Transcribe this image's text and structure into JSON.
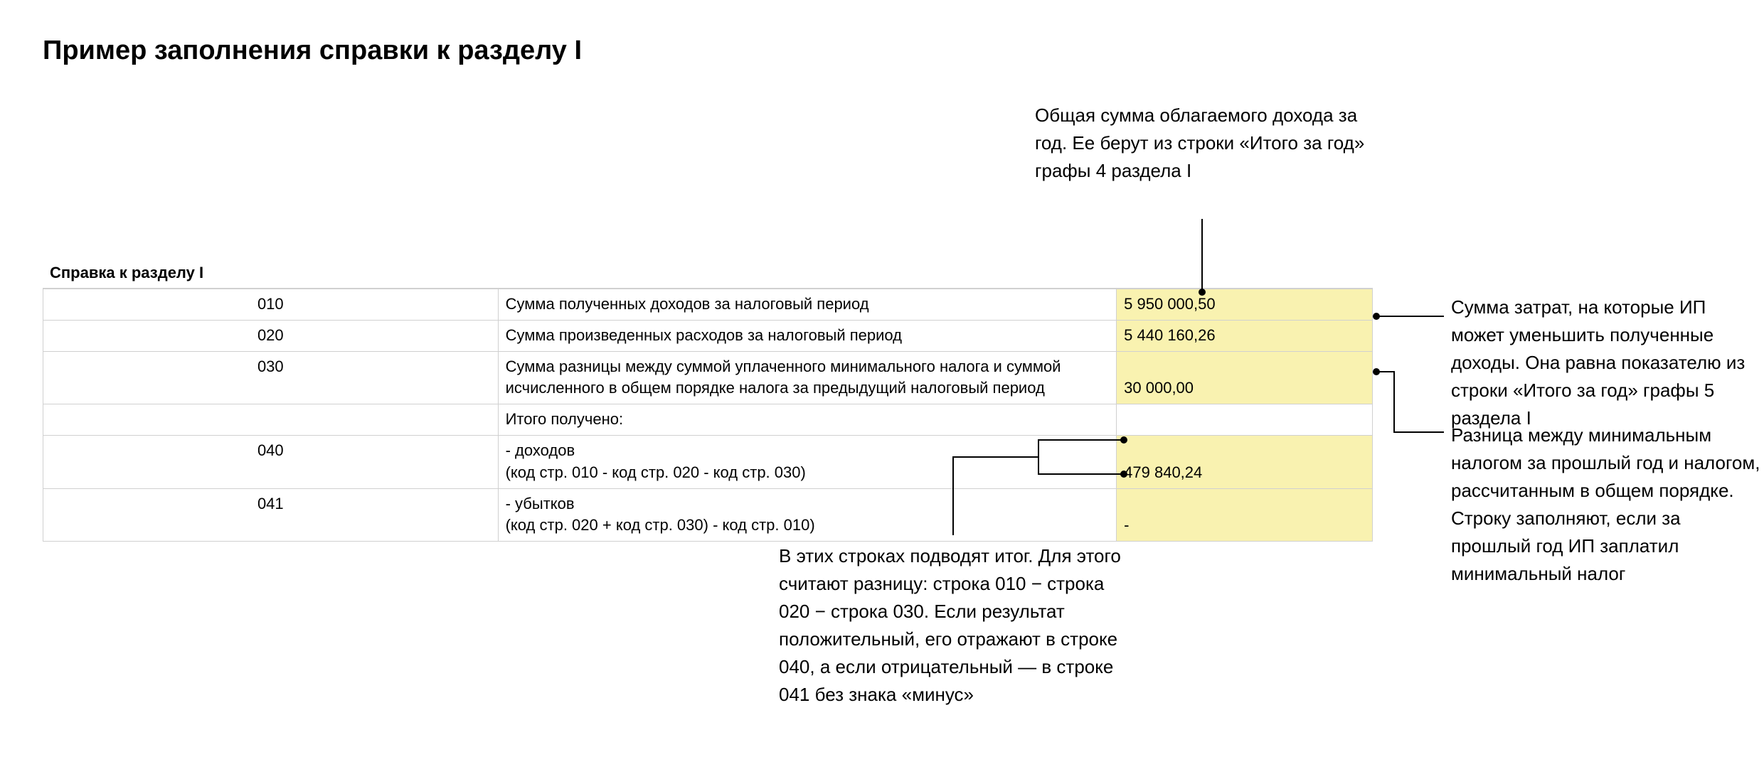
{
  "title": "Пример заполнения справки к разделу I",
  "table": {
    "header": "Справка к разделу I",
    "highlight_color": "#f9f2b0",
    "border_color": "#d0d0d0",
    "rows": [
      {
        "code": "010",
        "desc": "Сумма полученных доходов за налоговый период",
        "value": "5 950 000,50",
        "highlight": true
      },
      {
        "code": "020",
        "desc": "Сумма произведенных расходов за налоговый период",
        "value": "5 440 160,26",
        "highlight": true
      },
      {
        "code": "030",
        "desc": "Сумма разницы между суммой уплаченного минимального налога и суммой исчисленного в общем порядке налога за предыдущий налоговый период",
        "value": "30 000,00",
        "highlight": true
      },
      {
        "code": "",
        "desc": "Итого получено:",
        "value": "",
        "highlight": false
      },
      {
        "code": "040",
        "desc": "- доходов\n(код стр. 010 - код стр. 020 - код стр. 030)",
        "value": "479 840,24",
        "highlight": true
      },
      {
        "code": "041",
        "desc": "- убытков\n(код стр. 020 + код стр. 030) - код стр. 010)",
        "value": "-",
        "highlight": true
      }
    ]
  },
  "annotations": {
    "top": "Общая сумма облагаемого дохода за год. Ее берут из строки «Итого за год» графы 4 раздела I",
    "right1": "Сумма затрат, на которые ИП может уменьшить полученные доходы. Она равна показателю из строки «Итого за год» графы 5 раздела I",
    "right2": "Разница между минимальным налогом за прошлый год и налогом, рассчитанным в общем порядке. Строку заполняют, если за прошлый год ИП заплатил минимальный налог",
    "bottom": "В этих строках подводят итог. Для этого считают разницу: строка 010 − строка 020 − строка 030. Если результат положительный, его отражают в строке 040, а если отрицательный — в строке 041 без знака «минус»"
  },
  "styling": {
    "title_fontsize": 38,
    "title_weight": 700,
    "table_fontsize": 22,
    "annotation_fontsize": 26,
    "background_color": "#ffffff",
    "text_color": "#000000"
  }
}
